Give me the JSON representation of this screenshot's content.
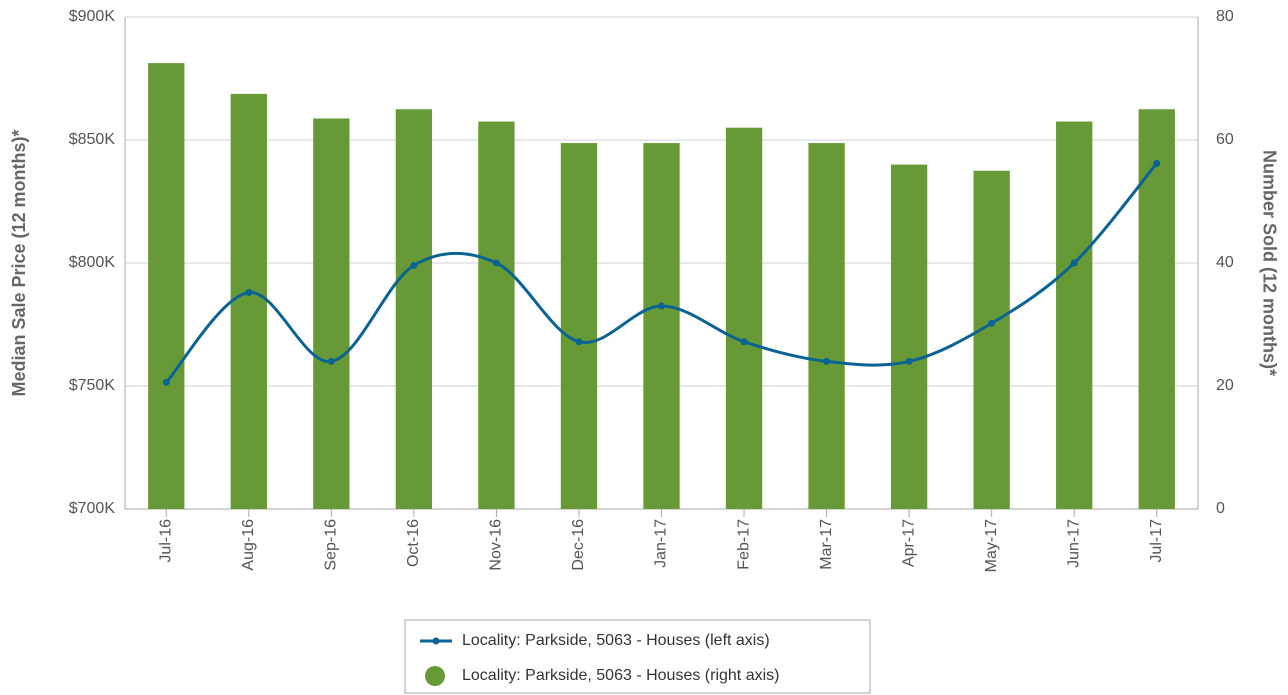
{
  "chart_data": {
    "type": "bar_line",
    "categories": [
      "Jul-16",
      "Aug-16",
      "Sep-16",
      "Oct-16",
      "Nov-16",
      "Dec-16",
      "Jan-17",
      "Feb-17",
      "Mar-17",
      "Apr-17",
      "May-17",
      "Jun-17",
      "Jul-17"
    ],
    "series": [
      {
        "name": "Locality: Parkside, 5063 - Houses (left axis)",
        "type": "line",
        "color": "#0b6394",
        "axis": "y",
        "values": [
          751500,
          788000,
          760000,
          799000,
          800000,
          768000,
          782500,
          768000,
          760000,
          760000,
          775500,
          800000,
          840500
        ]
      },
      {
        "name": "Locality: Parkside, 5063 - Houses (right axis)",
        "type": "bar",
        "color": "#679a36",
        "axis": "y2",
        "values": [
          72.5,
          67.5,
          63.5,
          65,
          63,
          59.5,
          59.5,
          62,
          59.5,
          56,
          55,
          63,
          65
        ]
      }
    ],
    "ylabel": "Median Sale Price (12 months)*",
    "y2label": "Number Sold (12 months)*",
    "ylim": [
      700000,
      900000
    ],
    "yticks": [
      {
        "value": 700000,
        "label": "$700K"
      },
      {
        "value": 750000,
        "label": "$750K"
      },
      {
        "value": 800000,
        "label": "$800K"
      },
      {
        "value": 850000,
        "label": "$850K"
      },
      {
        "value": 900000,
        "label": "$900K"
      }
    ],
    "y2lim": [
      0,
      80
    ],
    "y2ticks": [
      0,
      20,
      40,
      60,
      80
    ],
    "grid": true,
    "legend": "bottom"
  }
}
